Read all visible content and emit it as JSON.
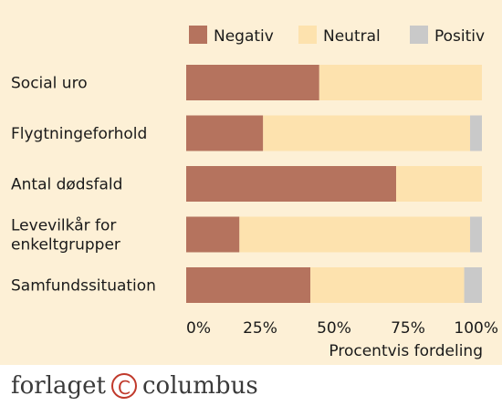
{
  "chart_data": {
    "type": "bar",
    "orientation": "horizontal",
    "stacked": true,
    "categories": [
      "Social uro",
      "Flygtningeforhold",
      "Antal dødsfald",
      "Levevilkår for enkeltgrupper",
      "Samfundssituation"
    ],
    "category_lines": [
      [
        "Social uro"
      ],
      [
        "Flygtningeforhold"
      ],
      [
        "Antal dødsfald"
      ],
      [
        "Levevilkår for",
        "enkeltgrupper"
      ],
      [
        "Samfundssituation"
      ]
    ],
    "series": [
      {
        "name": "Negativ",
        "color": "#b5735e",
        "values": [
          45,
          26,
          71,
          18,
          42
        ]
      },
      {
        "name": "Neutral",
        "color": "#fde2ae",
        "values": [
          55,
          70,
          29,
          78,
          52
        ]
      },
      {
        "name": "Positiv",
        "color": "#c9c9c9",
        "values": [
          0,
          4,
          0,
          4,
          6
        ]
      }
    ],
    "xlim": [
      0,
      100
    ],
    "xticks": [
      "0%",
      "25%",
      "50%",
      "75%",
      "100%"
    ],
    "xlabel": "Procentvis fordeling",
    "legend_position": "top"
  },
  "footer": {
    "logo_left": "forlaget",
    "logo_symbol": "C",
    "logo_right": "columbus"
  }
}
